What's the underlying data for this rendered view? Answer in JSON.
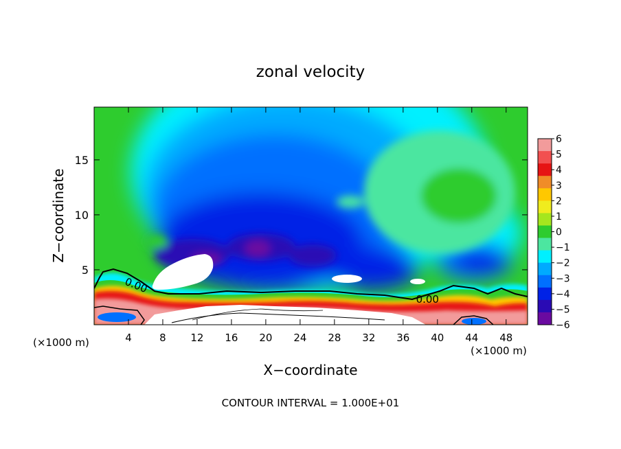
{
  "chart_data": {
    "type": "heatmap",
    "title": "zonal velocity",
    "xlabel": "X−coordinate",
    "ylabel": "Z−coordinate",
    "x_unit_left": "(×1000 m)",
    "x_unit_right": "(×1000 m)",
    "xlim": [
      0,
      50.5
    ],
    "ylim": [
      0,
      19.8
    ],
    "x_ticks": [
      4,
      8,
      12,
      16,
      20,
      24,
      28,
      32,
      36,
      40,
      44,
      48
    ],
    "y_ticks": [
      5,
      10,
      15
    ],
    "colorbar": {
      "ticks": [
        6,
        5,
        4,
        3,
        2,
        1,
        0,
        -1,
        -2,
        -3,
        -4,
        -5,
        -6
      ],
      "tick_labels": [
        "6",
        "5",
        "4",
        "3",
        "2",
        "1",
        "0",
        "−1",
        "−2",
        "−3",
        "−4",
        "−5",
        "−6"
      ],
      "colors": [
        "#f29b9b",
        "#f25050",
        "#e61414",
        "#f08c28",
        "#ffc800",
        "#f0ec1e",
        "#a6e61e",
        "#2ecc2e",
        "#4ce6a0",
        "#00f0ff",
        "#00aaff",
        "#0070ff",
        "#0022e6",
        "#2a0ab4",
        "#6a0aa0"
      ]
    },
    "contours": [
      {
        "label": "0.00",
        "x": 3.5,
        "y": 4.0
      },
      {
        "label": "0.00",
        "x": 37.5,
        "y": 2.3
      }
    ],
    "footer": "CONTOUR INTERVAL = 1.000E+01",
    "grid": false,
    "legend": "colorbar right"
  }
}
